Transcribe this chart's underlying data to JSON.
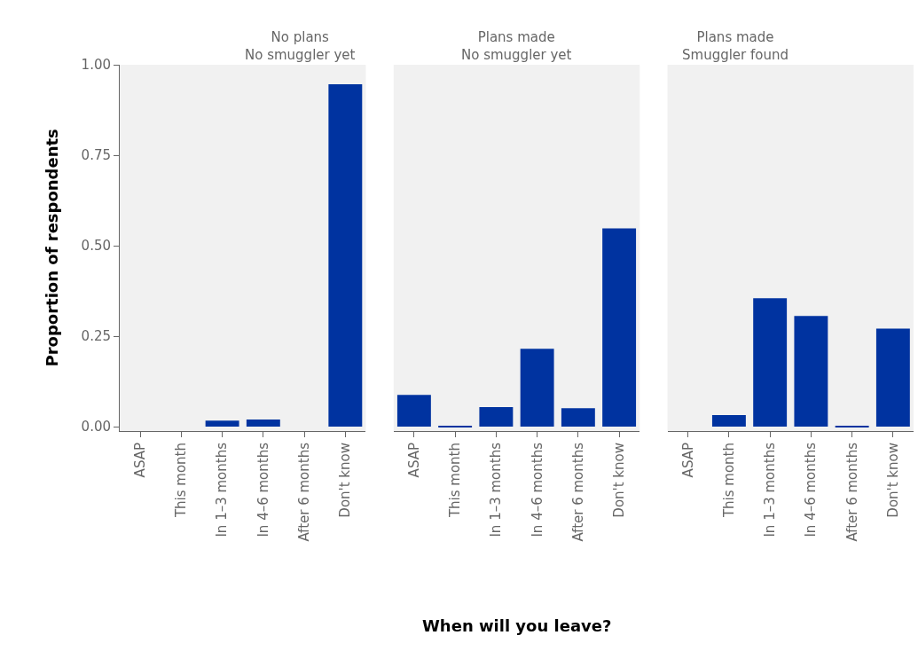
{
  "chart_data": [
    {
      "type": "bar",
      "title": "No plans\nNo smuggler yet",
      "ylabel": "Proportion of respondents",
      "categories": [
        "ASAP",
        "This month",
        "In 1–3 months",
        "In 4–6 months",
        "After 6 months",
        "Don't know"
      ],
      "values": [
        0,
        0,
        0.017,
        0.02,
        0,
        0.946
      ],
      "color": "#0033a0",
      "ylim": [
        -0.012,
        1.0
      ],
      "yticks": [
        {
          "value": 0,
          "label": "0.00"
        },
        {
          "value": 0.25,
          "label": "0.25"
        },
        {
          "value": 0.5,
          "label": "0.50"
        },
        {
          "value": 0.75,
          "label": "0.75"
        },
        {
          "value": 1.0,
          "label": "1.00"
        }
      ],
      "grid": false
    },
    {
      "type": "bar",
      "title": "Plans made\nNo smuggler yet",
      "xlabel": "When will you leave?",
      "categories": [
        "ASAP",
        "This month",
        "In 1–3 months",
        "In 4–6 months",
        "After 6 months",
        "Don't know"
      ],
      "values": [
        0.088,
        0.002,
        0.054,
        0.215,
        0.051,
        0.548
      ],
      "color": "#0033a0",
      "ylim": [
        -0.012,
        1.0
      ],
      "tick_labels": "x",
      "grid": false
    },
    {
      "type": "bar",
      "title": "Plans made\nSmuggler found",
      "categories": [
        "ASAP",
        "This month",
        "In 1–3 months",
        "In 4–6 months",
        "After 6 months",
        "Don't know"
      ],
      "values": [
        0,
        0.032,
        0.355,
        0.306,
        0.002,
        0.271
      ],
      "color": "#0033a0",
      "ylim": [
        -0.012,
        1.0
      ],
      "tick_labels": "x",
      "grid": false
    }
  ]
}
